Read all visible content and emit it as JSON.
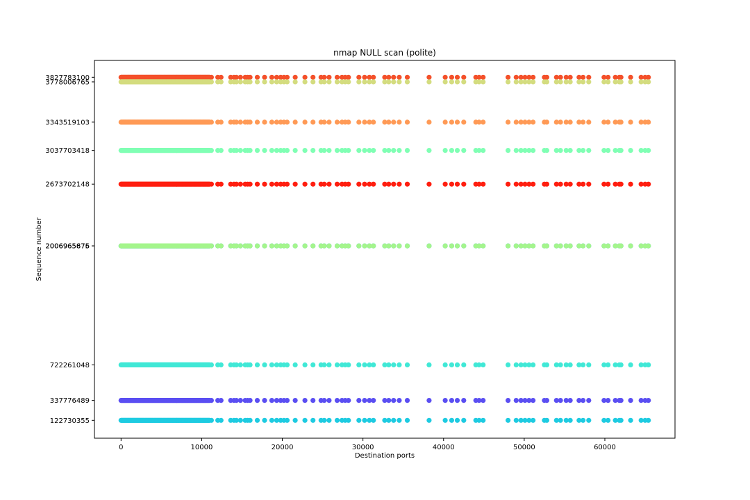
{
  "chart_data": {
    "type": "scatter",
    "title": "nmap NULL scan (polite)",
    "xlabel": "Destination ports",
    "ylabel": "Sequence number",
    "xlim": [
      -3300,
      68700
    ],
    "ylim": [
      -70000000,
      4010000000
    ],
    "grid": false,
    "x_ticks": [
      0,
      10000,
      20000,
      30000,
      40000,
      50000,
      60000
    ],
    "x_tick_labels": [
      "0",
      "10000",
      "20000",
      "30000",
      "40000",
      "50000",
      "60000"
    ],
    "y_tick_labels": [
      "3827783100",
      "3778006765",
      "3343519103",
      "3037703418",
      "2673702148",
      "2006965876",
      "2006965675",
      "722261048",
      "337776489",
      "122730355"
    ],
    "series": [
      {
        "y": 3827783100,
        "color": "#f4502a"
      },
      {
        "y": 3778006765,
        "color": "#d4dc7f"
      },
      {
        "y": 3343519103,
        "color": "#ff9a56"
      },
      {
        "y": 3037703418,
        "color": "#80ffb4"
      },
      {
        "y": 2673702148,
        "color": "#ff1f10"
      },
      {
        "y": 2006965876,
        "color": "#1fa8e6"
      },
      {
        "y": 2006965675,
        "color": "#a4f58c"
      },
      {
        "y": 722261048,
        "color": "#40e8d6"
      },
      {
        "y": 337776489,
        "color": "#5a4ef2"
      },
      {
        "y": 122730355,
        "color": "#1ecbe1"
      }
    ],
    "x_sparse": [
      11200,
      12000,
      12400,
      13600,
      14000,
      14300,
      14800,
      15400,
      15700,
      16000,
      16900,
      17800,
      18700,
      19300,
      19800,
      20200,
      20600,
      21600,
      22800,
      23800,
      24800,
      25200,
      25800,
      26800,
      27400,
      27800,
      28200,
      29500,
      30200,
      30800,
      31300,
      32700,
      33200,
      33800,
      34500,
      35500,
      38200,
      40200,
      41000,
      41700,
      42500,
      44000,
      44400,
      44900,
      48000,
      49000,
      49600,
      50100,
      50600,
      51100,
      52500,
      52800,
      54000,
      54500,
      55200,
      55700,
      56800,
      57300,
      58000,
      59900,
      60400,
      61300,
      61800,
      62000,
      63200,
      64500,
      65000,
      65400
    ]
  }
}
